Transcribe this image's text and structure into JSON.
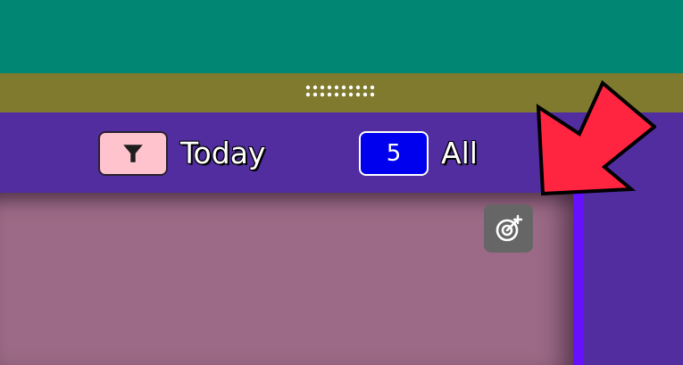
{
  "filters": [
    {
      "name": "today",
      "label": "Today",
      "icon": "filter-icon"
    },
    {
      "name": "all",
      "label": "All",
      "count": "5"
    }
  ],
  "content": {
    "add_goal_icon": "target-add-icon"
  },
  "annotation": {
    "icon": "arrow-pointer-icon",
    "color": "#ff2540"
  },
  "colors": {
    "top_bar": "#008673",
    "drag_bar": "#7f7a2e",
    "filter_bar": "#512da0",
    "today_button": "#ffc3ce",
    "all_badge": "#0000ee",
    "content_panel": "#9c6a86",
    "accent_line": "#6610ff"
  }
}
